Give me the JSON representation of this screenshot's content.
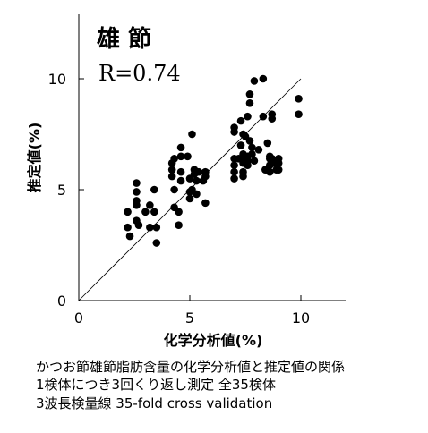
{
  "chart_data": {
    "type": "scatter",
    "title": "雄 節",
    "annotation": "R=0.74",
    "xlabel": "化学分析値(%)",
    "ylabel": "推定値(%)",
    "xlim": [
      0,
      12
    ],
    "ylim": [
      0,
      12
    ],
    "x_ticks": [
      0,
      5,
      10
    ],
    "y_ticks": [
      0,
      5,
      10
    ],
    "reference_line": {
      "from": [
        0,
        0
      ],
      "to": [
        10,
        10
      ]
    },
    "grid": false,
    "series": [
      {
        "points": [
          [
            2.2,
            4.0
          ],
          [
            2.2,
            3.3
          ],
          [
            2.3,
            2.9
          ],
          [
            2.6,
            5.3
          ],
          [
            2.6,
            4.9
          ],
          [
            2.6,
            4.5
          ],
          [
            2.6,
            4.3
          ],
          [
            2.6,
            3.6
          ],
          [
            2.7,
            3.4
          ],
          [
            3.0,
            4.0
          ],
          [
            3.2,
            4.3
          ],
          [
            3.2,
            3.3
          ],
          [
            3.4,
            5.0
          ],
          [
            3.4,
            4.0
          ],
          [
            3.5,
            3.3
          ],
          [
            3.5,
            2.6
          ],
          [
            4.2,
            6.2
          ],
          [
            4.2,
            5.9
          ],
          [
            4.2,
            5.6
          ],
          [
            4.3,
            6.4
          ],
          [
            4.3,
            5.0
          ],
          [
            4.3,
            4.2
          ],
          [
            4.5,
            4.0
          ],
          [
            4.5,
            3.4
          ],
          [
            4.6,
            6.9
          ],
          [
            4.6,
            6.5
          ],
          [
            4.6,
            5.8
          ],
          [
            4.6,
            5.4
          ],
          [
            4.9,
            6.5
          ],
          [
            5.0,
            5.5
          ],
          [
            5.0,
            4.9
          ],
          [
            5.0,
            4.6
          ],
          [
            5.1,
            7.5
          ],
          [
            5.1,
            5.0
          ],
          [
            5.2,
            5.7
          ],
          [
            5.2,
            5.9
          ],
          [
            5.3,
            5.4
          ],
          [
            5.3,
            4.8
          ],
          [
            5.4,
            5.8
          ],
          [
            5.6,
            5.4
          ],
          [
            5.7,
            4.4
          ],
          [
            5.7,
            5.6
          ],
          [
            5.7,
            5.8
          ],
          [
            7.0,
            7.8
          ],
          [
            7.0,
            7.6
          ],
          [
            7.0,
            6.4
          ],
          [
            7.0,
            6.1
          ],
          [
            7.0,
            5.8
          ],
          [
            7.0,
            5.5
          ],
          [
            7.2,
            6.4
          ],
          [
            7.3,
            7.0
          ],
          [
            7.3,
            8.1
          ],
          [
            7.4,
            7.5
          ],
          [
            7.4,
            6.6
          ],
          [
            7.4,
            6.4
          ],
          [
            7.4,
            6.2
          ],
          [
            7.4,
            5.8
          ],
          [
            7.4,
            5.6
          ],
          [
            7.5,
            7.4
          ],
          [
            7.6,
            8.3
          ],
          [
            7.6,
            6.5
          ],
          [
            7.6,
            6.3
          ],
          [
            7.6,
            6.1
          ],
          [
            7.7,
            8.9
          ],
          [
            7.7,
            9.3
          ],
          [
            7.7,
            7.2
          ],
          [
            7.8,
            6.9
          ],
          [
            7.8,
            6.6
          ],
          [
            7.9,
            9.9
          ],
          [
            7.9,
            6.3
          ],
          [
            8.1,
            6.8
          ],
          [
            8.3,
            10.0
          ],
          [
            8.3,
            8.3
          ],
          [
            8.4,
            5.9
          ],
          [
            8.5,
            7.1
          ],
          [
            8.6,
            6.5
          ],
          [
            8.6,
            6.4
          ],
          [
            8.6,
            6.1
          ],
          [
            8.6,
            5.8
          ],
          [
            8.7,
            8.4
          ],
          [
            8.7,
            8.2
          ],
          [
            8.7,
            6.4
          ],
          [
            8.8,
            6.2
          ],
          [
            8.9,
            5.9
          ],
          [
            9.0,
            6.4
          ],
          [
            9.0,
            6.2
          ],
          [
            9.0,
            5.9
          ],
          [
            9.9,
            9.1
          ],
          [
            9.9,
            8.4
          ]
        ]
      }
    ]
  },
  "captions": [
    "かつお節雄節脂肪含量の化学分析値と推定値の関係",
    "1検体につき3回くり返し測定  全35検体",
    "3波長検量線  35-fold cross validation"
  ]
}
